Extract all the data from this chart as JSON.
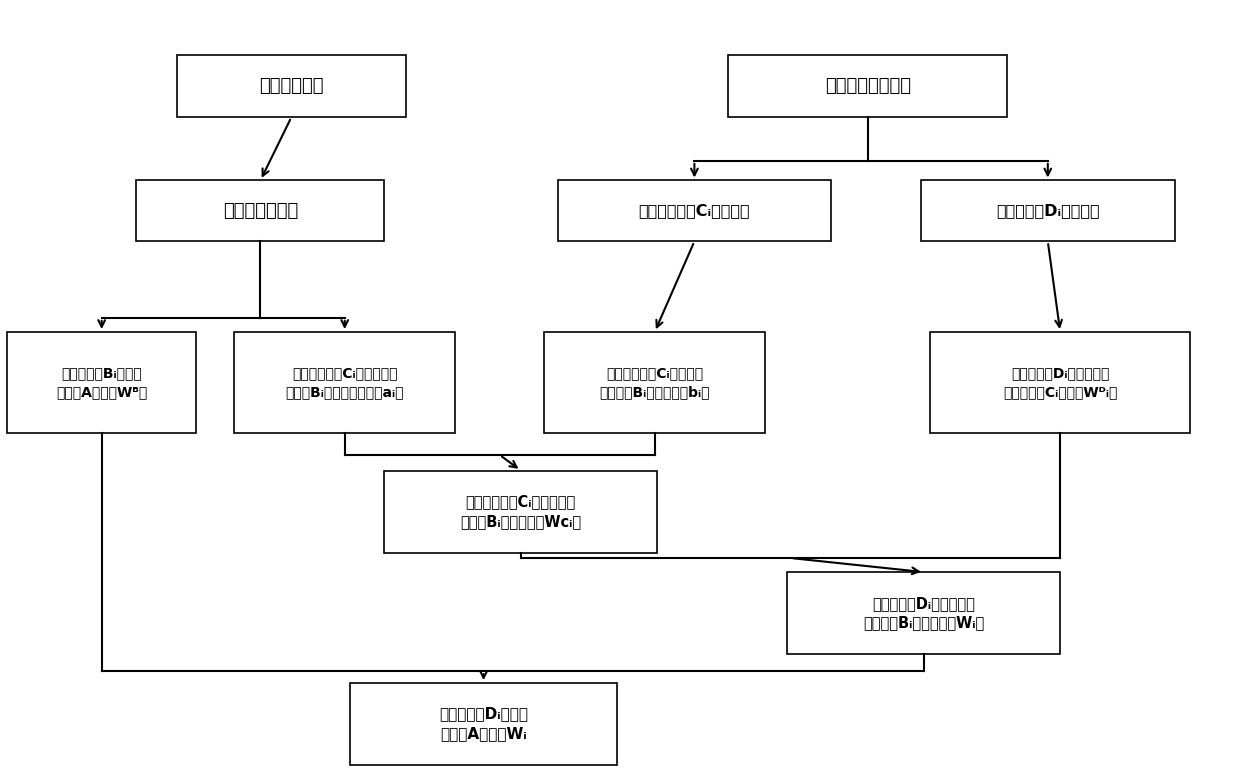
{
  "bg_color": "#ffffff",
  "box_edge_color": "#000000",
  "arrow_color": "#000000",
  "font_color": "#000000",
  "lw": 1.5,
  "boxes": {
    "expert": [
      0.235,
      0.89,
      0.185,
      0.08
    ],
    "accident": [
      0.7,
      0.89,
      0.225,
      0.08
    ],
    "group": [
      0.21,
      0.73,
      0.2,
      0.078
    ],
    "freq_c": [
      0.56,
      0.73,
      0.22,
      0.078
    ],
    "freq_d": [
      0.845,
      0.73,
      0.205,
      0.078
    ],
    "wBj": [
      0.082,
      0.51,
      0.152,
      0.13
    ],
    "aij": [
      0.278,
      0.51,
      0.178,
      0.13
    ],
    "bij": [
      0.528,
      0.51,
      0.178,
      0.13
    ],
    "wDij": [
      0.855,
      0.51,
      0.21,
      0.13
    ],
    "wcij": [
      0.42,
      0.345,
      0.22,
      0.105
    ],
    "wij": [
      0.745,
      0.215,
      0.22,
      0.105
    ],
    "Wi": [
      0.39,
      0.073,
      0.215,
      0.105
    ]
  },
  "font_sizes": {
    "expert": 13,
    "accident": 13,
    "group": 13,
    "freq_c": 11.5,
    "freq_d": 11.5,
    "wBj": 10,
    "aij": 10,
    "bij": 10,
    "wDij": 10,
    "wcij": 10.5,
    "wij": 10.5,
    "Wi": 11
  }
}
